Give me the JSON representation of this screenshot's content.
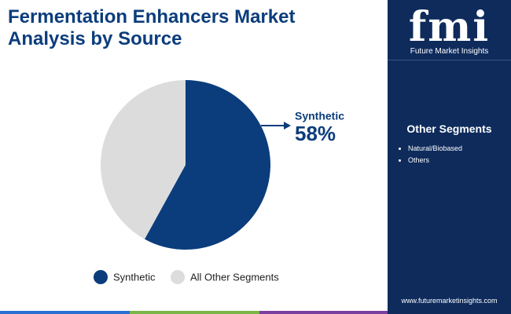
{
  "header": {
    "title": "Fermentation Enhancers Market Analysis by Source"
  },
  "chart_data": {
    "type": "pie",
    "categories": [
      "Synthetic",
      "All Other Segments"
    ],
    "values": [
      58,
      42
    ],
    "value_labels": [
      "58%",
      null
    ],
    "colors": [
      "#0b3d7c",
      "#dcdcdc"
    ],
    "legend": "bottom"
  },
  "sidebar": {
    "logo": "fmi",
    "brand": "Future Market Insights",
    "heading": "Other Segments",
    "items": [
      "Natural/Biobased",
      "Others"
    ],
    "website": "www.futuremarketinsights.com"
  }
}
